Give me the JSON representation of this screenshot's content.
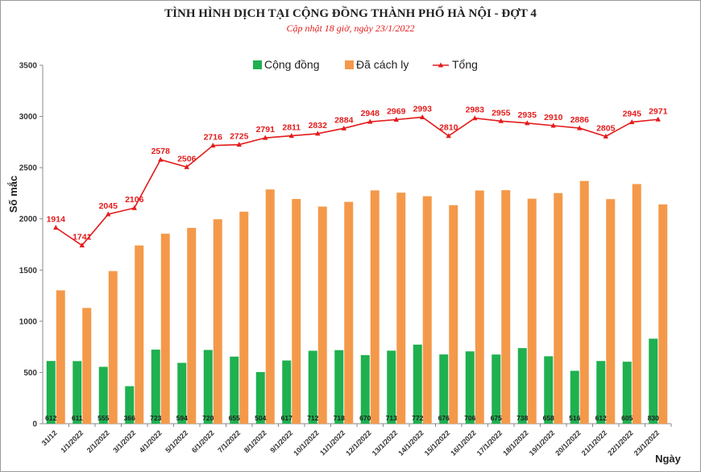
{
  "title": "TÌNH HÌNH DỊCH TẠI CỘNG ĐỒNG THÀNH PHỐ HÀ NỘI - ĐỢT 4",
  "subtitle": "Cập nhật 18 giờ, ngày  23/1/2022",
  "colors": {
    "community": "#1fb050",
    "quarantined": "#f4994a",
    "total": "#e41b1b"
  },
  "chart_data": {
    "type": "bar",
    "ylabel": "Số mắc",
    "xlabel": "Ngày",
    "ylim": [
      0,
      3500
    ],
    "yticks": [
      "0",
      "500",
      "1000",
      "1500",
      "2000",
      "2500",
      "3000",
      "3500"
    ],
    "legend_position": "top-center",
    "grid": false,
    "categories": [
      "31/12",
      "1/1/2022",
      "2/1/2022",
      "3/1/2022",
      "4/1/2022",
      "5/1/2022",
      "6/1/2022",
      "7/1/2022",
      "8/1/2022",
      "9/1/2022",
      "10/1/2022",
      "11/1/2022",
      "12/1/2022",
      "13/1/2022",
      "14/1/2022",
      "15/1/2022",
      "16/1/2022",
      "17/1/2022",
      "18/1/2022",
      "19/1/2022",
      "20/1/2022",
      "21/1/2022",
      "22/1/2022",
      "23/1/2022"
    ],
    "series": [
      {
        "name": "Cộng đồng",
        "type": "bar",
        "values": [
          612,
          611,
          555,
          366,
          723,
          594,
          720,
          655,
          504,
          617,
          712,
          718,
          670,
          713,
          772,
          676,
          706,
          675,
          738,
          658,
          516,
          612,
          605,
          830
        ]
      },
      {
        "name": "Đã cách ly",
        "type": "bar",
        "values": [
          1302,
          1130,
          1490,
          1740,
          1855,
          1912,
          1996,
          2070,
          2287,
          2194,
          2120,
          2166,
          2278,
          2256,
          2221,
          2134,
          2277,
          2280,
          2197,
          2252,
          2370,
          2193,
          2340,
          2141
        ]
      },
      {
        "name": "Tổng",
        "type": "line",
        "values": [
          1914,
          1741,
          2045,
          2106,
          2578,
          2506,
          2716,
          2725,
          2791,
          2811,
          2832,
          2884,
          2948,
          2969,
          2993,
          2810,
          2983,
          2955,
          2935,
          2910,
          2886,
          2805,
          2945,
          2971
        ]
      }
    ]
  }
}
